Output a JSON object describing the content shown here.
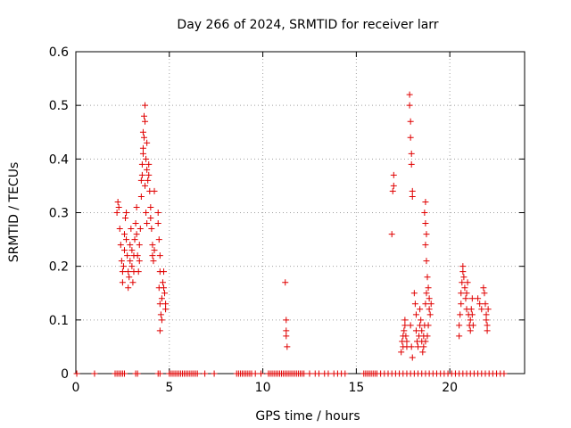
{
  "chart_data": {
    "type": "scatter",
    "title": "Day 266 of 2024, SRMTID for receiver larr",
    "xlabel": "GPS time / hours",
    "ylabel": "SRMTID / TECUs",
    "xlim": [
      0,
      24
    ],
    "ylim": [
      0,
      0.6
    ],
    "xticks": [
      0,
      5,
      10,
      15,
      20
    ],
    "xtick_labels": [
      "0",
      "5",
      "10",
      "15",
      "20"
    ],
    "yticks": [
      0,
      0.1,
      0.2,
      0.3,
      0.4,
      0.5,
      0.6
    ],
    "ytick_labels": [
      "0",
      "0.1",
      "0.2",
      "0.3",
      "0.4",
      "0.5",
      "0.6"
    ],
    "grid": true,
    "marker": "+",
    "color": "#e00000",
    "series": [
      {
        "name": "SRMTID",
        "points": [
          [
            0.05,
            0
          ],
          [
            1.0,
            0
          ],
          [
            2.1,
            0
          ],
          [
            2.2,
            0
          ],
          [
            2.3,
            0
          ],
          [
            2.4,
            0
          ],
          [
            2.5,
            0
          ],
          [
            2.6,
            0
          ],
          [
            3.2,
            0
          ],
          [
            3.3,
            0
          ],
          [
            4.4,
            0
          ],
          [
            4.5,
            0
          ],
          [
            5.0,
            0
          ],
          [
            5.1,
            0
          ],
          [
            5.2,
            0
          ],
          [
            5.3,
            0
          ],
          [
            5.4,
            0
          ],
          [
            5.5,
            0
          ],
          [
            5.6,
            0
          ],
          [
            5.7,
            0
          ],
          [
            5.8,
            0
          ],
          [
            5.9,
            0
          ],
          [
            6.0,
            0
          ],
          [
            6.1,
            0
          ],
          [
            6.2,
            0
          ],
          [
            6.3,
            0
          ],
          [
            6.4,
            0
          ],
          [
            6.5,
            0
          ],
          [
            6.9,
            0
          ],
          [
            7.4,
            0
          ],
          [
            8.6,
            0
          ],
          [
            8.7,
            0
          ],
          [
            8.8,
            0
          ],
          [
            8.9,
            0
          ],
          [
            9.0,
            0
          ],
          [
            9.1,
            0
          ],
          [
            9.2,
            0
          ],
          [
            9.3,
            0
          ],
          [
            9.4,
            0
          ],
          [
            9.6,
            0
          ],
          [
            9.9,
            0
          ],
          [
            10.3,
            0
          ],
          [
            10.4,
            0
          ],
          [
            10.5,
            0
          ],
          [
            10.6,
            0
          ],
          [
            10.7,
            0
          ],
          [
            10.8,
            0
          ],
          [
            10.9,
            0
          ],
          [
            11.0,
            0
          ],
          [
            11.1,
            0
          ],
          [
            11.2,
            0
          ],
          [
            11.3,
            0
          ],
          [
            11.4,
            0
          ],
          [
            11.5,
            0
          ],
          [
            11.6,
            0
          ],
          [
            11.7,
            0
          ],
          [
            11.8,
            0
          ],
          [
            11.9,
            0
          ],
          [
            12.0,
            0
          ],
          [
            12.1,
            0
          ],
          [
            12.2,
            0
          ],
          [
            12.5,
            0
          ],
          [
            12.8,
            0
          ],
          [
            13.0,
            0
          ],
          [
            13.3,
            0
          ],
          [
            13.5,
            0
          ],
          [
            13.8,
            0
          ],
          [
            14.0,
            0
          ],
          [
            14.2,
            0
          ],
          [
            14.4,
            0
          ],
          [
            15.4,
            0
          ],
          [
            15.5,
            0
          ],
          [
            15.6,
            0
          ],
          [
            15.7,
            0
          ],
          [
            15.8,
            0
          ],
          [
            15.9,
            0
          ],
          [
            16.0,
            0
          ],
          [
            16.1,
            0
          ],
          [
            16.3,
            0
          ],
          [
            16.5,
            0
          ],
          [
            16.7,
            0
          ],
          [
            16.9,
            0
          ],
          [
            17.1,
            0
          ],
          [
            17.3,
            0
          ],
          [
            17.5,
            0
          ],
          [
            17.7,
            0
          ],
          [
            17.9,
            0
          ],
          [
            18.1,
            0
          ],
          [
            18.3,
            0
          ],
          [
            18.5,
            0
          ],
          [
            18.7,
            0
          ],
          [
            18.9,
            0
          ],
          [
            19.1,
            0
          ],
          [
            19.3,
            0
          ],
          [
            19.5,
            0
          ],
          [
            19.7,
            0
          ],
          [
            19.9,
            0
          ],
          [
            20.1,
            0
          ],
          [
            20.3,
            0
          ],
          [
            20.5,
            0
          ],
          [
            20.7,
            0
          ],
          [
            20.9,
            0
          ],
          [
            21.1,
            0
          ],
          [
            21.3,
            0
          ],
          [
            21.5,
            0
          ],
          [
            21.7,
            0
          ],
          [
            21.9,
            0
          ],
          [
            22.1,
            0
          ],
          [
            22.3,
            0
          ],
          [
            22.5,
            0
          ],
          [
            22.7,
            0
          ],
          [
            22.9,
            0
          ],
          [
            2.2,
            0.3
          ],
          [
            2.25,
            0.32
          ],
          [
            2.3,
            0.31
          ],
          [
            2.35,
            0.27
          ],
          [
            2.4,
            0.24
          ],
          [
            2.45,
            0.21
          ],
          [
            2.5,
            0.19
          ],
          [
            2.5,
            0.17
          ],
          [
            2.55,
            0.2
          ],
          [
            2.6,
            0.23
          ],
          [
            2.6,
            0.26
          ],
          [
            2.65,
            0.29
          ],
          [
            2.7,
            0.3
          ],
          [
            2.7,
            0.25
          ],
          [
            2.75,
            0.22
          ],
          [
            2.8,
            0.19
          ],
          [
            2.8,
            0.16
          ],
          [
            2.85,
            0.18
          ],
          [
            2.9,
            0.21
          ],
          [
            2.9,
            0.24
          ],
          [
            2.95,
            0.27
          ],
          [
            3.0,
            0.23
          ],
          [
            3.0,
            0.2
          ],
          [
            3.05,
            0.17
          ],
          [
            3.1,
            0.19
          ],
          [
            3.1,
            0.22
          ],
          [
            3.15,
            0.25
          ],
          [
            3.2,
            0.28
          ],
          [
            3.25,
            0.31
          ],
          [
            3.25,
            0.26
          ],
          [
            3.3,
            0.22
          ],
          [
            3.35,
            0.19
          ],
          [
            3.4,
            0.24
          ],
          [
            3.4,
            0.21
          ],
          [
            3.45,
            0.27
          ],
          [
            3.5,
            0.33
          ],
          [
            3.5,
            0.36
          ],
          [
            3.55,
            0.39
          ],
          [
            3.6,
            0.42
          ],
          [
            3.6,
            0.45
          ],
          [
            3.65,
            0.48
          ],
          [
            3.7,
            0.5
          ],
          [
            3.7,
            0.47
          ],
          [
            3.65,
            0.44
          ],
          [
            3.6,
            0.41
          ],
          [
            3.55,
            0.37
          ],
          [
            3.7,
            0.35
          ],
          [
            3.75,
            0.4
          ],
          [
            3.8,
            0.43
          ],
          [
            3.8,
            0.38
          ],
          [
            3.85,
            0.36
          ],
          [
            3.9,
            0.37
          ],
          [
            3.9,
            0.39
          ],
          [
            3.95,
            0.34
          ],
          [
            4.0,
            0.31
          ],
          [
            4.0,
            0.29
          ],
          [
            4.05,
            0.27
          ],
          [
            4.1,
            0.24
          ],
          [
            4.1,
            0.22
          ],
          [
            4.15,
            0.21
          ],
          [
            4.2,
            0.23
          ],
          [
            4.2,
            0.34
          ],
          [
            3.75,
            0.3
          ],
          [
            3.8,
            0.28
          ],
          [
            4.4,
            0.3
          ],
          [
            4.4,
            0.28
          ],
          [
            4.45,
            0.25
          ],
          [
            4.5,
            0.22
          ],
          [
            4.5,
            0.19
          ],
          [
            4.45,
            0.16
          ],
          [
            4.5,
            0.13
          ],
          [
            4.55,
            0.11
          ],
          [
            4.6,
            0.1
          ],
          [
            4.6,
            0.14
          ],
          [
            4.65,
            0.17
          ],
          [
            4.7,
            0.19
          ],
          [
            4.7,
            0.16
          ],
          [
            4.75,
            0.15
          ],
          [
            4.8,
            0.13
          ],
          [
            4.8,
            0.12
          ],
          [
            4.5,
            0.08
          ],
          [
            11.2,
            0.17
          ],
          [
            11.25,
            0.1
          ],
          [
            11.25,
            0.08
          ],
          [
            11.25,
            0.07
          ],
          [
            11.3,
            0.05
          ],
          [
            16.9,
            0.26
          ],
          [
            16.95,
            0.34
          ],
          [
            17.0,
            0.35
          ],
          [
            17.0,
            0.37
          ],
          [
            17.4,
            0.04
          ],
          [
            17.45,
            0.06
          ],
          [
            17.5,
            0.05
          ],
          [
            17.5,
            0.07
          ],
          [
            17.55,
            0.08
          ],
          [
            17.6,
            0.09
          ],
          [
            17.6,
            0.1
          ],
          [
            17.65,
            0.07
          ],
          [
            17.7,
            0.06
          ],
          [
            17.7,
            0.05
          ],
          [
            17.9,
            0.09
          ],
          [
            17.95,
            0.05
          ],
          [
            18.0,
            0.03
          ],
          [
            18.0,
            0.33
          ],
          [
            18.0,
            0.34
          ],
          [
            17.95,
            0.39
          ],
          [
            17.95,
            0.41
          ],
          [
            17.9,
            0.44
          ],
          [
            17.9,
            0.47
          ],
          [
            17.85,
            0.5
          ],
          [
            17.85,
            0.52
          ],
          [
            18.1,
            0.15
          ],
          [
            18.15,
            0.13
          ],
          [
            18.2,
            0.11
          ],
          [
            18.2,
            0.08
          ],
          [
            18.25,
            0.06
          ],
          [
            18.3,
            0.05
          ],
          [
            18.35,
            0.07
          ],
          [
            18.4,
            0.09
          ],
          [
            18.4,
            0.12
          ],
          [
            18.45,
            0.1
          ],
          [
            18.5,
            0.08
          ],
          [
            18.5,
            0.06
          ],
          [
            18.55,
            0.04
          ],
          [
            18.6,
            0.05
          ],
          [
            18.6,
            0.07
          ],
          [
            18.65,
            0.09
          ],
          [
            18.7,
            0.06
          ],
          [
            18.7,
            0.13
          ],
          [
            18.75,
            0.15
          ],
          [
            18.7,
            0.32
          ],
          [
            18.65,
            0.3
          ],
          [
            18.7,
            0.28
          ],
          [
            18.75,
            0.26
          ],
          [
            18.7,
            0.24
          ],
          [
            18.75,
            0.21
          ],
          [
            18.8,
            0.18
          ],
          [
            18.85,
            0.16
          ],
          [
            18.9,
            0.14
          ],
          [
            18.9,
            0.12
          ],
          [
            18.95,
            0.11
          ],
          [
            19.0,
            0.13
          ],
          [
            18.85,
            0.09
          ],
          [
            18.8,
            0.07
          ],
          [
            20.5,
            0.07
          ],
          [
            20.5,
            0.09
          ],
          [
            20.55,
            0.11
          ],
          [
            20.6,
            0.13
          ],
          [
            20.6,
            0.15
          ],
          [
            20.65,
            0.17
          ],
          [
            20.7,
            0.19
          ],
          [
            20.7,
            0.2
          ],
          [
            20.75,
            0.18
          ],
          [
            20.8,
            0.16
          ],
          [
            20.85,
            0.14
          ],
          [
            20.9,
            0.12
          ],
          [
            20.9,
            0.15
          ],
          [
            20.95,
            0.17
          ],
          [
            21.0,
            0.11
          ],
          [
            21.05,
            0.09
          ],
          [
            21.1,
            0.08
          ],
          [
            21.1,
            0.1
          ],
          [
            21.15,
            0.12
          ],
          [
            21.2,
            0.14
          ],
          [
            21.2,
            0.11
          ],
          [
            21.25,
            0.09
          ],
          [
            21.5,
            0.14
          ],
          [
            21.6,
            0.13
          ],
          [
            21.7,
            0.12
          ],
          [
            21.8,
            0.16
          ],
          [
            21.85,
            0.15
          ],
          [
            21.9,
            0.13
          ],
          [
            21.95,
            0.11
          ],
          [
            22.0,
            0.09
          ],
          [
            22.0,
            0.08
          ],
          [
            21.95,
            0.1
          ],
          [
            22.05,
            0.12
          ]
        ]
      }
    ]
  }
}
